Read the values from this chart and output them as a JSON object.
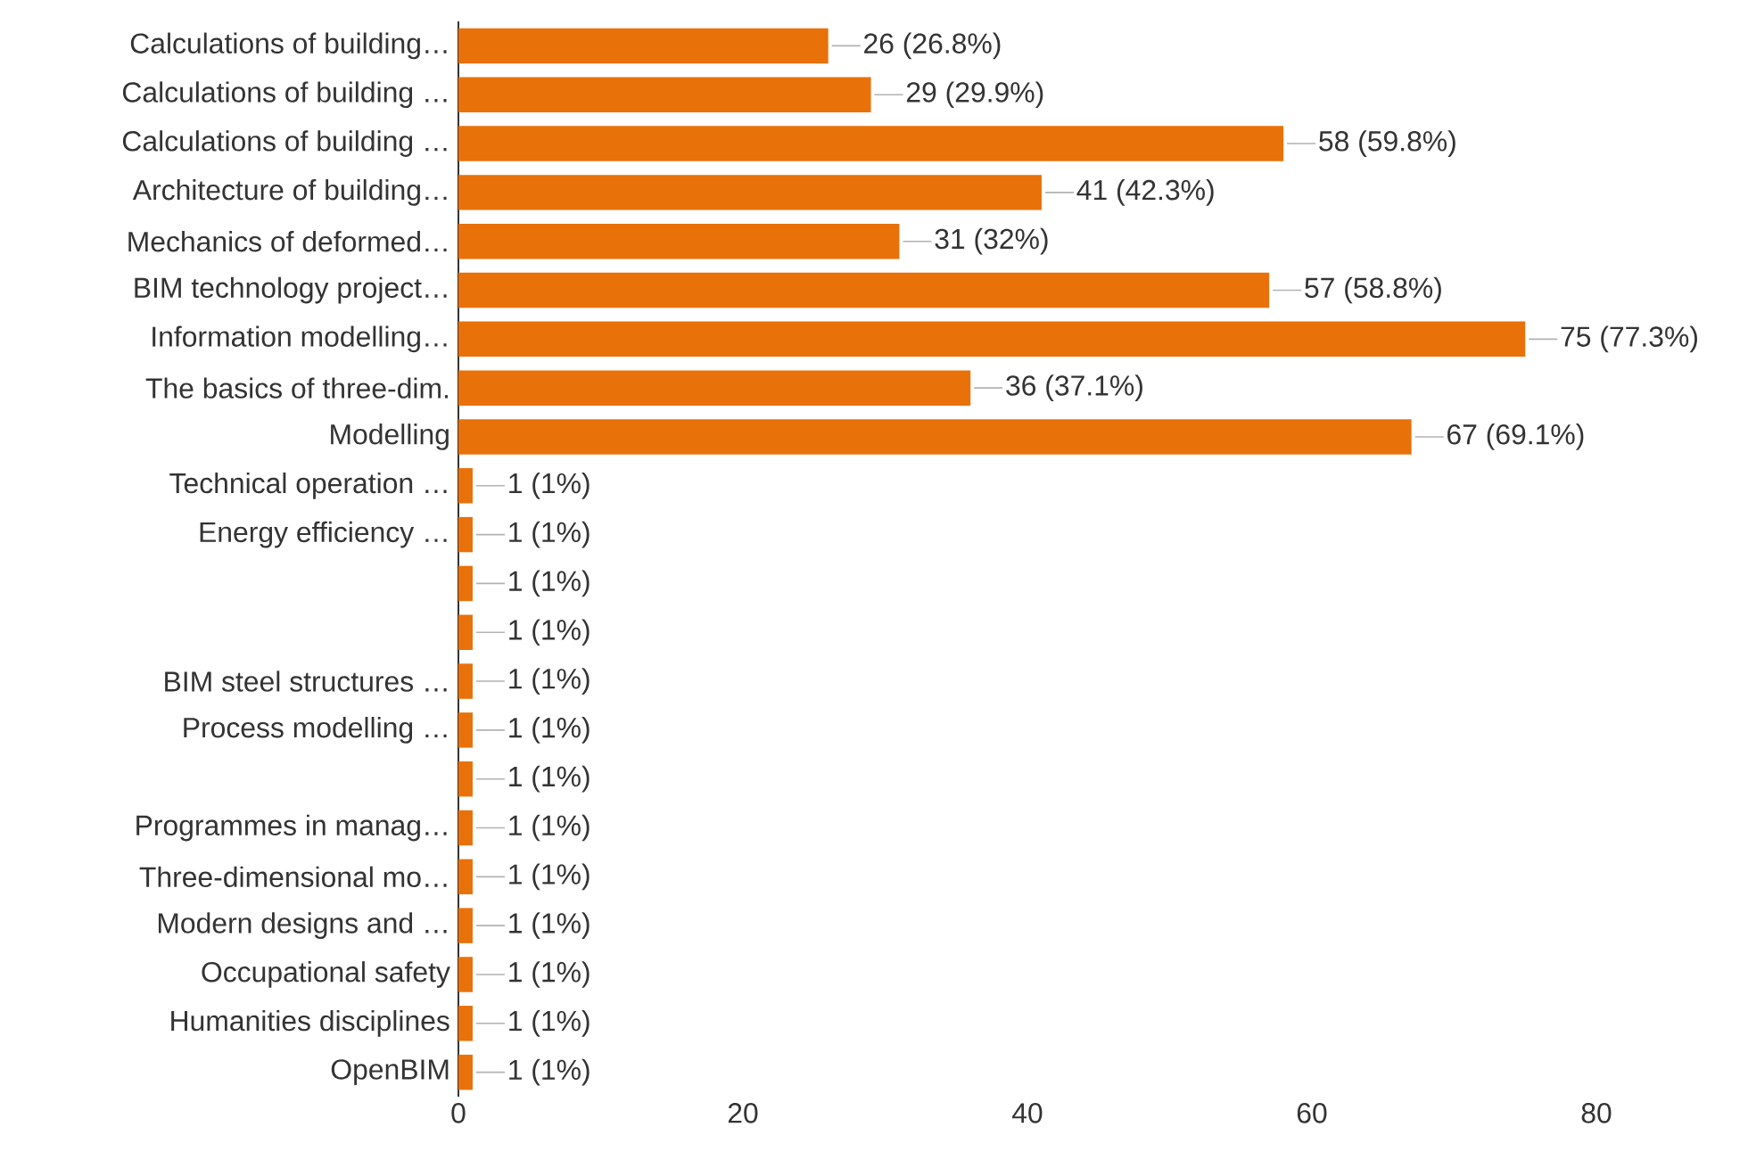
{
  "chart_data": {
    "type": "bar",
    "orientation": "horizontal",
    "color": "#e8710a",
    "categories": [
      "Calculations of building…",
      "Calculations of building …",
      "Calculations of building …",
      "Architecture of building…",
      "Mechanics of deformed…",
      "BIM technology project…",
      "Information modelling…",
      "The basics of three-dim.",
      "Modelling",
      "Technical operation …",
      "Energy efficiency …",
      null,
      null,
      "BIM steel structures …",
      "Process modelling …",
      null,
      "Programmes in manag…",
      "Three-dimensional mo…",
      "Modern designs and …",
      "Occupational safety",
      "Humanities disciplines",
      "OpenBIM"
    ],
    "values": [
      26,
      29,
      58,
      41,
      31,
      57,
      75,
      36,
      67,
      1,
      1,
      1,
      1,
      1,
      1,
      1,
      1,
      1,
      1,
      1,
      1,
      1
    ],
    "value_labels": [
      "26 (26.8%)",
      "29 (29.9%)",
      "58 (59.8%)",
      "41 (42.3%)",
      "31 (32%)",
      "57 (58.8%)",
      "75 (77.3%)",
      "36 (37.1%)",
      "67 (69.1%)",
      "1 (1%)",
      "1 (1%)",
      "1 (1%)",
      "1 (1%)",
      "1 (1%)",
      "1 (1%)",
      "1 (1%)",
      "1 (1%)",
      "1 (1%)",
      "1 (1%)",
      "1 (1%)",
      "1 (1%)",
      "1 (1%)"
    ],
    "xlim": [
      0,
      80
    ],
    "xticks": [
      0,
      20,
      40,
      60,
      80
    ],
    "grid": false
  }
}
